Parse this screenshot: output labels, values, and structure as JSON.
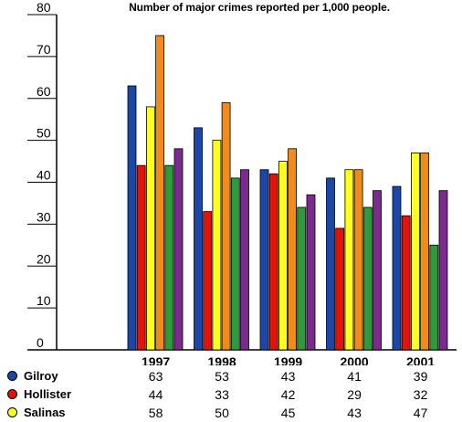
{
  "chart_data": {
    "type": "bar",
    "title": "Number of major crimes reported per 1,000 people.",
    "categories": [
      "1997",
      "1998",
      "1999",
      "2000",
      "2001"
    ],
    "ylim": [
      0,
      80
    ],
    "yticks": [
      "0",
      "10",
      "20",
      "30",
      "40",
      "50",
      "60",
      "70",
      "80"
    ],
    "grid": false,
    "legend": "table below chart",
    "series": [
      {
        "name": "Gilroy",
        "color": "#1a47a8",
        "values": [
          63,
          53,
          43,
          41,
          39
        ]
      },
      {
        "name": "Hollister",
        "color": "#e3120b",
        "values": [
          44,
          33,
          42,
          29,
          32
        ]
      },
      {
        "name": "Salinas",
        "color": "#ffff1f",
        "values": [
          58,
          50,
          45,
          43,
          47
        ]
      },
      {
        "name": "",
        "color": "#f28a1c",
        "values": [
          75,
          59,
          48,
          43,
          47
        ]
      },
      {
        "name": "",
        "color": "#2e9a3b",
        "values": [
          44,
          41,
          34,
          34,
          25
        ]
      },
      {
        "name": "",
        "color": "#7b2a8e",
        "values": [
          48,
          43,
          37,
          38,
          38
        ]
      }
    ],
    "table_rows": [
      {
        "name": "Gilroy",
        "color": "#1a47a8",
        "values": [
          "63",
          "53",
          "43",
          "41",
          "39"
        ]
      },
      {
        "name": "Hollister",
        "color": "#e3120b",
        "values": [
          "44",
          "33",
          "42",
          "29",
          "32"
        ]
      },
      {
        "name": "Salinas",
        "color": "#ffff1f",
        "values": [
          "58",
          "50",
          "45",
          "43",
          "47"
        ]
      }
    ]
  }
}
